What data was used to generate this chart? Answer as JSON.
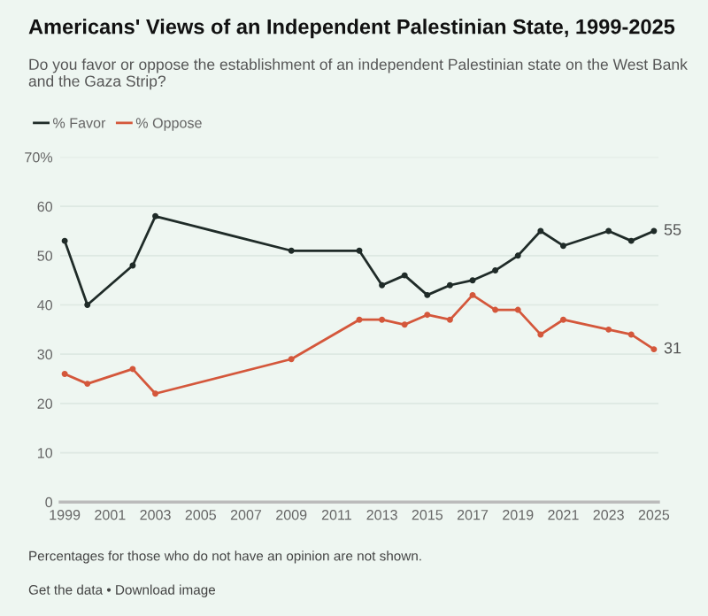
{
  "chart_data": {
    "type": "line",
    "title": "Americans' Views of an Independent Palestinian State, 1999-2025",
    "subtitle": "Do you favor or oppose the establishment of an independent Palestinian state on the West Bank and the Gaza Strip?",
    "x": [
      1999,
      2000,
      2002,
      2003,
      2009,
      2012,
      2013,
      2014,
      2015,
      2016,
      2017,
      2018,
      2019,
      2020,
      2021,
      2023,
      2024,
      2025
    ],
    "series": [
      {
        "name": "% Favor",
        "color": "#1f2b28",
        "values": [
          53,
          40,
          48,
          58,
          51,
          51,
          44,
          46,
          42,
          44,
          45,
          47,
          50,
          55,
          52,
          55,
          53,
          55
        ],
        "value_labels": [
          null,
          null,
          null,
          null,
          null,
          null,
          null,
          null,
          null,
          null,
          null,
          null,
          null,
          null,
          null,
          null,
          null,
          "55"
        ]
      },
      {
        "name": "% Oppose",
        "color": "#d4573b",
        "values": [
          26,
          24,
          27,
          22,
          29,
          37,
          37,
          36,
          38,
          37,
          42,
          39,
          39,
          34,
          37,
          35,
          34,
          31
        ],
        "value_labels": [
          null,
          null,
          null,
          null,
          null,
          null,
          null,
          null,
          null,
          null,
          null,
          null,
          null,
          null,
          null,
          null,
          null,
          "31"
        ]
      }
    ],
    "xlim": [
      1998.8,
      2025.2
    ],
    "xticks": [
      1999,
      2001,
      2003,
      2005,
      2007,
      2009,
      2011,
      2013,
      2015,
      2017,
      2019,
      2021,
      2023,
      2025
    ],
    "ylim": [
      0,
      70
    ],
    "yticks": [
      0,
      10,
      20,
      30,
      40,
      50,
      60,
      {
        "value": 70,
        "label": "70%"
      }
    ],
    "grid": "y",
    "legend": "top left",
    "marker": "circle",
    "line_style": "solid",
    "annotations": [
      "Percentages for those who do not have an opinion are not shown.",
      "Get the data • Download image"
    ]
  }
}
